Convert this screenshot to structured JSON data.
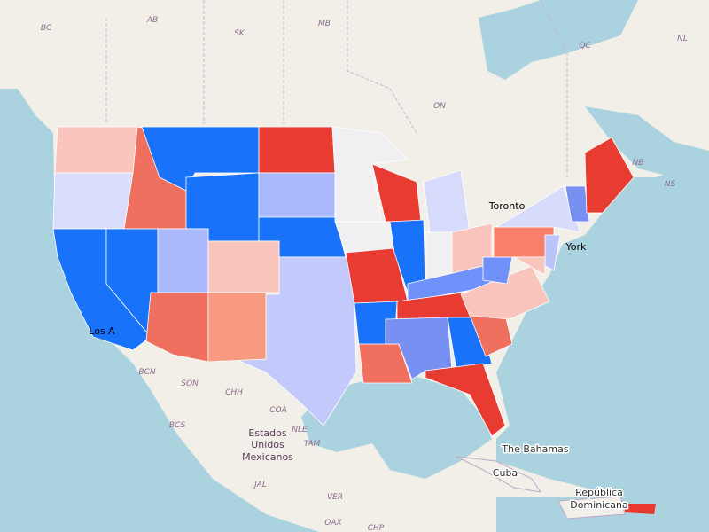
{
  "labels": [
    "BC",
    "AB",
    "SK",
    "MB",
    "ON",
    "QC",
    "NL",
    "NB",
    "NS",
    "Toronto",
    "Los A",
    "York",
    "BCN",
    "SON",
    "CHH",
    "COA",
    "NLE",
    "TAM",
    "BCS",
    "Estados",
    "Unidos",
    "Mexicanos",
    "JAL",
    "VER",
    "OAX",
    "CHP",
    "The Bahamas",
    "Cuba",
    "República",
    "Dominicana"
  ]
}
